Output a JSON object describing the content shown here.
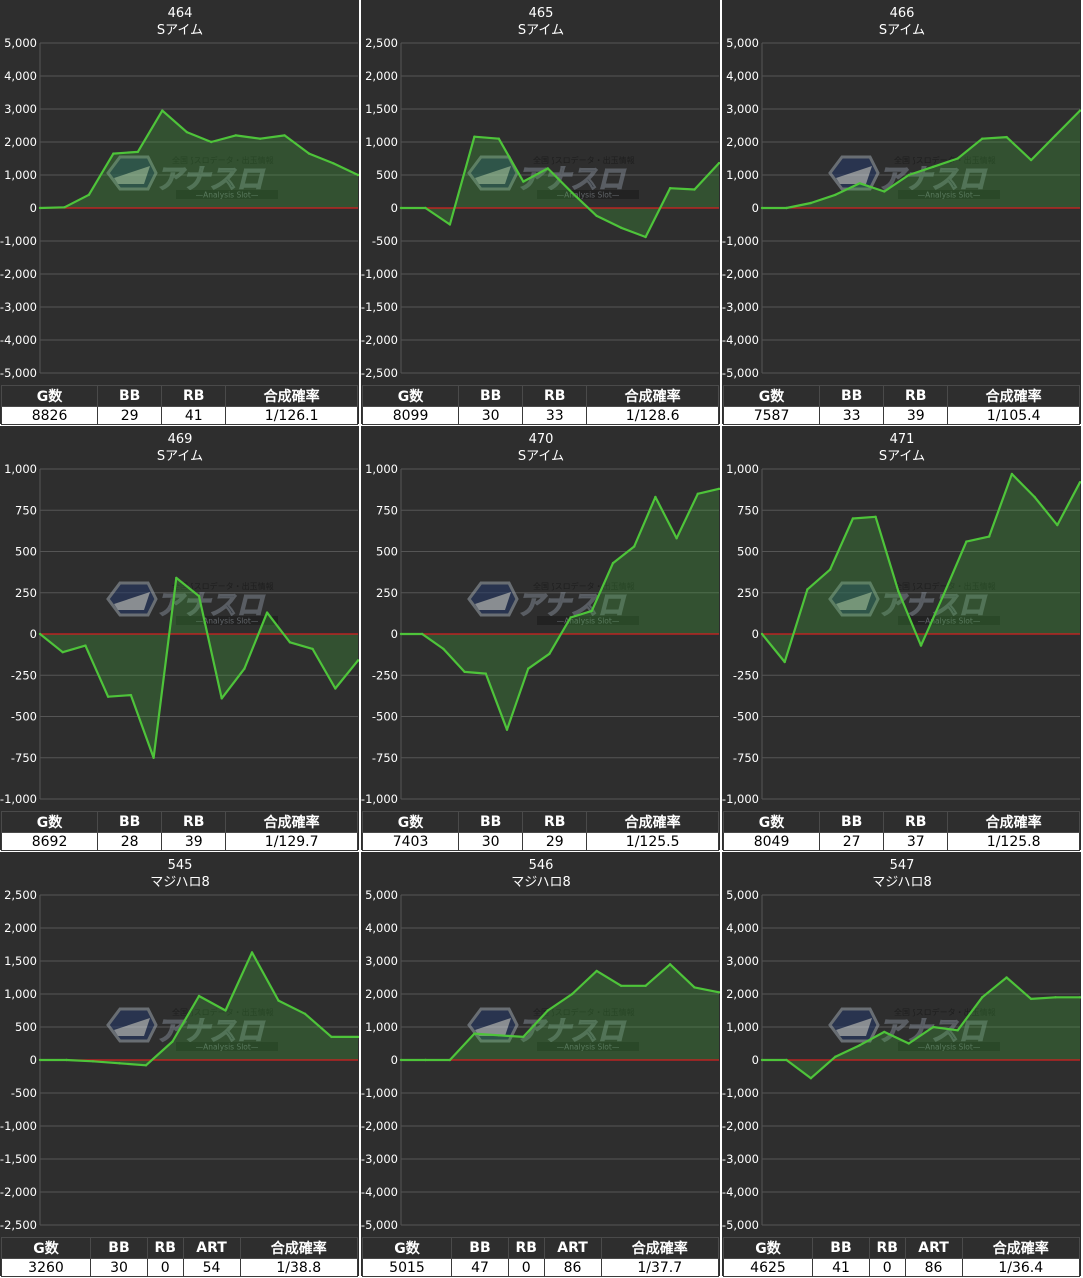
{
  "colors": {
    "panel_bg": "#2e2e2e",
    "grid": "#555555",
    "zero_line": "#d42020",
    "line": "#4ec43a",
    "fill": "#3fae3a",
    "logo_dark": "#1e2a3a"
  },
  "watermark": {
    "top_text": "全国 ⟆スロデータ・出玉情報",
    "main_text": "アナスロ",
    "sub_text": "Analysis Slot"
  },
  "panels": [
    {
      "machine_no": "464",
      "model": "Sアイム",
      "stats": {
        "headers": [
          "G数",
          "BB",
          "RB",
          "合成確率"
        ],
        "values": [
          "8826",
          "29",
          "41",
          "1/126.1"
        ]
      },
      "chart_data": {
        "type": "area",
        "ylim": [
          -5000,
          5000
        ],
        "yticks": [
          "5,000",
          "4,000",
          "3,000",
          "2,000",
          "1,000",
          "0",
          "-1,000",
          "-2,000",
          "-3,000",
          "-4,000",
          "-5,000"
        ],
        "x": [
          0,
          1,
          2,
          3,
          4,
          5,
          6,
          7,
          8,
          9,
          10,
          11,
          12,
          13
        ],
        "values": [
          0,
          20,
          400,
          1650,
          1700,
          2950,
          2300,
          2000,
          2200,
          2100,
          2200,
          1650,
          1350,
          1000
        ]
      }
    },
    {
      "machine_no": "465",
      "model": "Sアイム",
      "stats": {
        "headers": [
          "G数",
          "BB",
          "RB",
          "合成確率"
        ],
        "values": [
          "8099",
          "30",
          "33",
          "1/128.6"
        ]
      },
      "chart_data": {
        "type": "area",
        "ylim": [
          -2500,
          2500
        ],
        "yticks": [
          "2,500",
          "2,000",
          "1,500",
          "1,000",
          "500",
          "0",
          "-500",
          "-1,000",
          "-1,500",
          "-2,000",
          "-2,500"
        ],
        "x": [
          0,
          1,
          2,
          3,
          4,
          5,
          6,
          7,
          8,
          9,
          10,
          11,
          12,
          13
        ],
        "values": [
          0,
          0,
          -250,
          1080,
          1050,
          400,
          600,
          230,
          -120,
          -300,
          -440,
          300,
          280,
          680
        ]
      }
    },
    {
      "machine_no": "466",
      "model": "Sアイム",
      "stats": {
        "headers": [
          "G数",
          "BB",
          "RB",
          "合成確率"
        ],
        "values": [
          "7587",
          "33",
          "39",
          "1/105.4"
        ]
      },
      "chart_data": {
        "type": "area",
        "ylim": [
          -5000,
          5000
        ],
        "yticks": [
          "5,000",
          "4,000",
          "3,000",
          "2,000",
          "1,000",
          "0",
          "-1,000",
          "-2,000",
          "-3,000",
          "-4,000",
          "-5,000"
        ],
        "x": [
          0,
          1,
          2,
          3,
          4,
          5,
          6,
          7,
          8,
          9,
          10,
          11,
          12,
          13
        ],
        "values": [
          0,
          0,
          150,
          400,
          750,
          500,
          1000,
          1250,
          1500,
          2100,
          2150,
          1450,
          2200,
          2950
        ]
      }
    },
    {
      "machine_no": "469",
      "model": "Sアイム",
      "stats": {
        "headers": [
          "G数",
          "BB",
          "RB",
          "合成確率"
        ],
        "values": [
          "8692",
          "28",
          "39",
          "1/129.7"
        ]
      },
      "chart_data": {
        "type": "area",
        "ylim": [
          -1000,
          1000
        ],
        "yticks": [
          "1,000",
          "750",
          "500",
          "250",
          "0",
          "-250",
          "-500",
          "-750",
          "-1,000"
        ],
        "x": [
          0,
          1,
          2,
          3,
          4,
          5,
          6,
          7,
          8,
          9,
          10,
          11,
          12,
          13,
          14
        ],
        "values": [
          0,
          -110,
          -70,
          -380,
          -370,
          -750,
          340,
          230,
          -390,
          -210,
          130,
          -50,
          -90,
          -330,
          -160
        ]
      }
    },
    {
      "machine_no": "470",
      "model": "Sアイム",
      "stats": {
        "headers": [
          "G数",
          "BB",
          "RB",
          "合成確率"
        ],
        "values": [
          "7403",
          "30",
          "29",
          "1/125.5"
        ]
      },
      "chart_data": {
        "type": "area",
        "ylim": [
          -1000,
          1000
        ],
        "yticks": [
          "1,000",
          "750",
          "500",
          "250",
          "0",
          "-250",
          "-500",
          "-750",
          "-1,000"
        ],
        "x": [
          0,
          1,
          2,
          3,
          4,
          5,
          6,
          7,
          8,
          9,
          10,
          11,
          12,
          13,
          14,
          15
        ],
        "values": [
          0,
          0,
          -90,
          -230,
          -240,
          -580,
          -210,
          -120,
          100,
          140,
          430,
          530,
          830,
          580,
          850,
          880
        ]
      }
    },
    {
      "machine_no": "471",
      "model": "Sアイム",
      "stats": {
        "headers": [
          "G数",
          "BB",
          "RB",
          "合成確率"
        ],
        "values": [
          "8049",
          "27",
          "37",
          "1/125.8"
        ]
      },
      "chart_data": {
        "type": "area",
        "ylim": [
          -1000,
          1000
        ],
        "yticks": [
          "1,000",
          "750",
          "500",
          "250",
          "0",
          "-250",
          "-500",
          "-750",
          "-1,000"
        ],
        "x": [
          0,
          1,
          2,
          3,
          4,
          5,
          6,
          7,
          8,
          9,
          10,
          11,
          12,
          13,
          14
        ],
        "values": [
          0,
          -170,
          270,
          390,
          700,
          710,
          260,
          -70,
          240,
          560,
          590,
          970,
          830,
          660,
          920
        ]
      }
    },
    {
      "machine_no": "545",
      "model": "マジハロ8",
      "stats": {
        "headers": [
          "G数",
          "BB",
          "RB",
          "ART",
          "合成確率"
        ],
        "values": [
          "3260",
          "30",
          "0",
          "54",
          "1/38.8"
        ]
      },
      "chart_data": {
        "type": "area",
        "ylim": [
          -2500,
          2500
        ],
        "yticks": [
          "2,500",
          "2,000",
          "1,500",
          "1,000",
          "500",
          "0",
          "-500",
          "-1,000",
          "-1,500",
          "-2,000",
          "-2,500"
        ],
        "x": [
          0,
          1,
          2,
          3,
          4,
          5,
          6,
          7,
          8,
          9,
          10,
          11,
          12
        ],
        "values": [
          0,
          0,
          -20,
          -50,
          -80,
          280,
          970,
          750,
          1630,
          900,
          700,
          350,
          350
        ]
      }
    },
    {
      "machine_no": "546",
      "model": "マジハロ8",
      "stats": {
        "headers": [
          "G数",
          "BB",
          "RB",
          "ART",
          "合成確率"
        ],
        "values": [
          "5015",
          "47",
          "0",
          "86",
          "1/37.7"
        ]
      },
      "chart_data": {
        "type": "area",
        "ylim": [
          -5000,
          5000
        ],
        "yticks": [
          "5,000",
          "4,000",
          "3,000",
          "2,000",
          "1,000",
          "0",
          "-1,000",
          "-2,000",
          "-3,000",
          "-4,000",
          "-5,000"
        ],
        "x": [
          0,
          1,
          2,
          3,
          4,
          5,
          6,
          7,
          8,
          9,
          10,
          11,
          12,
          13
        ],
        "values": [
          0,
          0,
          0,
          800,
          750,
          700,
          1500,
          2000,
          2700,
          2250,
          2250,
          2900,
          2200,
          2050
        ]
      }
    },
    {
      "machine_no": "547",
      "model": "マジハロ8",
      "stats": {
        "headers": [
          "G数",
          "BB",
          "RB",
          "ART",
          "合成確率"
        ],
        "values": [
          "4625",
          "41",
          "0",
          "86",
          "1/36.4"
        ]
      },
      "chart_data": {
        "type": "area",
        "ylim": [
          -5000,
          5000
        ],
        "yticks": [
          "5,000",
          "4,000",
          "3,000",
          "2,000",
          "1,000",
          "0",
          "-1,000",
          "-2,000",
          "-3,000",
          "-4,000",
          "-5,000"
        ],
        "x": [
          0,
          1,
          2,
          3,
          4,
          5,
          6,
          7,
          8,
          9,
          10,
          11,
          12,
          13
        ],
        "values": [
          0,
          0,
          -550,
          100,
          450,
          850,
          500,
          1000,
          900,
          1900,
          2500,
          1850,
          1900,
          1900
        ]
      }
    }
  ]
}
